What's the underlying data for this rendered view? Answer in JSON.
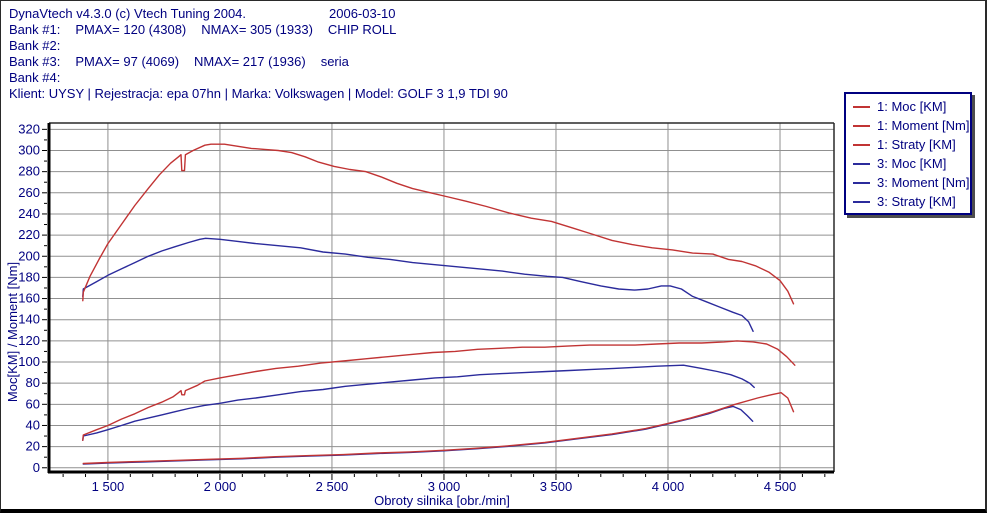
{
  "header": {
    "app_title": "DynaVtech v4.3.0 (c) Vtech Tuning 2004.",
    "date": "2006-03-10",
    "banks": [
      {
        "label": "Bank #1:",
        "pmax": "PMAX= 120 (4308)",
        "nmax": "NMAX= 305 (1933)",
        "note": "CHIP ROLL"
      },
      {
        "label": "Bank #2:",
        "pmax": "",
        "nmax": "",
        "note": ""
      },
      {
        "label": "Bank #3:",
        "pmax": "PMAX= 97 (4069)",
        "nmax": "NMAX= 217 (1936)",
        "note": "seria"
      },
      {
        "label": "Bank #4:",
        "pmax": "",
        "nmax": "",
        "note": ""
      }
    ],
    "client_line": "Klient: UYSY | Rejestracja: epa 07hn | Marka: Volkswagen | Model: GOLF 3 1,9 TDI 90"
  },
  "legend": {
    "items": [
      {
        "label": "1: Moc [KM]"
      },
      {
        "label": "1: Moment [Nm]"
      },
      {
        "label": "1: Straty [KM]"
      },
      {
        "label": "3: Moc [KM]"
      },
      {
        "label": "3: Moment [Nm]"
      },
      {
        "label": "3: Straty [KM]"
      }
    ]
  },
  "colors": {
    "text_navy": "#000080",
    "curve_red": "#c13434",
    "curve_blue": "#2b2b9c",
    "grid": "#909090",
    "plot_border": "#2a2a2a"
  },
  "chart_data": {
    "type": "line",
    "title": "",
    "xlabel": "Obroty silnika [obr./min]",
    "ylabel": "Moc[KM] / Moment [Nm]",
    "xlim": [
      1237,
      4741
    ],
    "ylim": [
      -4,
      326
    ],
    "grid": true,
    "legend_position": "top-right-outside",
    "x_ticks_major": [
      1500,
      2000,
      2500,
      3000,
      3500,
      4000,
      4500
    ],
    "x_tick_labels": [
      "1 500",
      "2 000",
      "2 500",
      "3 000",
      "3 500",
      "4 000",
      "4 500"
    ],
    "x_minor_step": 100,
    "y_ticks_major": [
      0,
      20,
      40,
      60,
      80,
      100,
      120,
      140,
      160,
      180,
      200,
      220,
      240,
      260,
      280,
      300,
      320
    ],
    "y_tick_labels": [
      "0",
      "20",
      "40",
      "60",
      "80",
      "100",
      "120",
      "140",
      "160",
      "180",
      "200",
      "220",
      "240",
      "260",
      "280",
      "300",
      "320"
    ],
    "y_minor_step": 10,
    "series": [
      {
        "id": "moment1",
        "name": "1: Moment [Nm]",
        "bank": 1,
        "color": "#c13434",
        "peak_note": "NMAX= 305 (1933)",
        "points": [
          [
            1388,
            158
          ],
          [
            1390,
            166
          ],
          [
            1420,
            181
          ],
          [
            1460,
            197
          ],
          [
            1500,
            212
          ],
          [
            1560,
            230
          ],
          [
            1620,
            248
          ],
          [
            1680,
            264
          ],
          [
            1730,
            277
          ],
          [
            1780,
            288
          ],
          [
            1815,
            294
          ],
          [
            1826,
            296
          ],
          [
            1830,
            281
          ],
          [
            1842,
            281
          ],
          [
            1846,
            296
          ],
          [
            1880,
            300
          ],
          [
            1933,
            305
          ],
          [
            1960,
            306
          ],
          [
            2020,
            306
          ],
          [
            2080,
            304
          ],
          [
            2140,
            302
          ],
          [
            2200,
            301
          ],
          [
            2260,
            300
          ],
          [
            2320,
            298
          ],
          [
            2380,
            294
          ],
          [
            2440,
            289
          ],
          [
            2510,
            285
          ],
          [
            2580,
            282
          ],
          [
            2650,
            280
          ],
          [
            2720,
            275
          ],
          [
            2790,
            269
          ],
          [
            2860,
            264
          ],
          [
            2940,
            260
          ],
          [
            3020,
            256
          ],
          [
            3100,
            252
          ],
          [
            3190,
            247
          ],
          [
            3290,
            241
          ],
          [
            3390,
            236
          ],
          [
            3480,
            233
          ],
          [
            3570,
            227
          ],
          [
            3660,
            221
          ],
          [
            3750,
            215
          ],
          [
            3840,
            211
          ],
          [
            3930,
            208
          ],
          [
            4020,
            206
          ],
          [
            4110,
            203
          ],
          [
            4200,
            202
          ],
          [
            4270,
            197
          ],
          [
            4330,
            195
          ],
          [
            4390,
            191
          ],
          [
            4450,
            185
          ],
          [
            4500,
            177
          ],
          [
            4535,
            167
          ],
          [
            4560,
            155
          ]
        ]
      },
      {
        "id": "moment3",
        "name": "3: Moment [Nm]",
        "bank": 3,
        "color": "#2b2b9c",
        "peak_note": "NMAX= 217 (1936)",
        "points": [
          [
            1388,
            162
          ],
          [
            1390,
            169
          ],
          [
            1450,
            176
          ],
          [
            1500,
            182
          ],
          [
            1560,
            188
          ],
          [
            1620,
            194
          ],
          [
            1680,
            200
          ],
          [
            1740,
            205
          ],
          [
            1800,
            209
          ],
          [
            1860,
            213
          ],
          [
            1910,
            216
          ],
          [
            1936,
            217
          ],
          [
            2000,
            216
          ],
          [
            2080,
            214
          ],
          [
            2160,
            212
          ],
          [
            2260,
            210
          ],
          [
            2360,
            208
          ],
          [
            2460,
            204
          ],
          [
            2560,
            202
          ],
          [
            2660,
            199
          ],
          [
            2760,
            197
          ],
          [
            2860,
            194
          ],
          [
            2960,
            192
          ],
          [
            3060,
            190
          ],
          [
            3160,
            188
          ],
          [
            3260,
            186
          ],
          [
            3360,
            183
          ],
          [
            3460,
            181
          ],
          [
            3530,
            180
          ],
          [
            3610,
            176
          ],
          [
            3700,
            172
          ],
          [
            3780,
            169
          ],
          [
            3850,
            168
          ],
          [
            3910,
            169
          ],
          [
            3970,
            172
          ],
          [
            4010,
            172
          ],
          [
            4060,
            169
          ],
          [
            4110,
            162
          ],
          [
            4170,
            157
          ],
          [
            4230,
            152
          ],
          [
            4290,
            147
          ],
          [
            4330,
            144
          ],
          [
            4360,
            138
          ],
          [
            4380,
            129
          ]
        ]
      },
      {
        "id": "moc1",
        "name": "1: Moc [KM]",
        "bank": 1,
        "color": "#c13434",
        "peak_note": "PMAX= 120 (4308)",
        "points": [
          [
            1388,
            26
          ],
          [
            1390,
            31
          ],
          [
            1450,
            36
          ],
          [
            1500,
            40
          ],
          [
            1560,
            46
          ],
          [
            1620,
            51
          ],
          [
            1680,
            57
          ],
          [
            1740,
            62
          ],
          [
            1790,
            67
          ],
          [
            1815,
            71
          ],
          [
            1826,
            73
          ],
          [
            1830,
            69
          ],
          [
            1842,
            69
          ],
          [
            1846,
            73
          ],
          [
            1900,
            78
          ],
          [
            1933,
            82
          ],
          [
            2000,
            85
          ],
          [
            2080,
            88
          ],
          [
            2160,
            91
          ],
          [
            2250,
            94
          ],
          [
            2350,
            96
          ],
          [
            2450,
            99
          ],
          [
            2550,
            101
          ],
          [
            2650,
            103
          ],
          [
            2750,
            105
          ],
          [
            2850,
            107
          ],
          [
            2950,
            109
          ],
          [
            3050,
            110
          ],
          [
            3150,
            112
          ],
          [
            3250,
            113
          ],
          [
            3350,
            114
          ],
          [
            3450,
            114
          ],
          [
            3550,
            115
          ],
          [
            3650,
            116
          ],
          [
            3750,
            116
          ],
          [
            3850,
            116
          ],
          [
            3950,
            117
          ],
          [
            4050,
            118
          ],
          [
            4150,
            118
          ],
          [
            4250,
            119
          ],
          [
            4308,
            120
          ],
          [
            4380,
            119
          ],
          [
            4440,
            117
          ],
          [
            4490,
            112
          ],
          [
            4530,
            105
          ],
          [
            4566,
            97
          ]
        ]
      },
      {
        "id": "moc3",
        "name": "3: Moc [KM]",
        "bank": 3,
        "color": "#2b2b9c",
        "peak_note": "PMAX= 97 (4069)",
        "points": [
          [
            1388,
            26
          ],
          [
            1390,
            30
          ],
          [
            1450,
            33
          ],
          [
            1500,
            36
          ],
          [
            1560,
            40
          ],
          [
            1620,
            44
          ],
          [
            1680,
            47
          ],
          [
            1740,
            50
          ],
          [
            1800,
            53
          ],
          [
            1860,
            56
          ],
          [
            1930,
            59
          ],
          [
            2000,
            61
          ],
          [
            2080,
            64
          ],
          [
            2160,
            66
          ],
          [
            2260,
            69
          ],
          [
            2360,
            72
          ],
          [
            2460,
            74
          ],
          [
            2560,
            77
          ],
          [
            2660,
            79
          ],
          [
            2760,
            81
          ],
          [
            2860,
            83
          ],
          [
            2960,
            85
          ],
          [
            3060,
            86
          ],
          [
            3160,
            88
          ],
          [
            3260,
            89
          ],
          [
            3360,
            90
          ],
          [
            3460,
            91
          ],
          [
            3560,
            92
          ],
          [
            3660,
            93
          ],
          [
            3760,
            94
          ],
          [
            3860,
            95
          ],
          [
            3950,
            96
          ],
          [
            4069,
            97
          ],
          [
            4150,
            94
          ],
          [
            4220,
            91
          ],
          [
            4280,
            88
          ],
          [
            4330,
            84
          ],
          [
            4365,
            80
          ],
          [
            4385,
            76
          ]
        ]
      },
      {
        "id": "straty1",
        "name": "1: Straty [KM]",
        "bank": 1,
        "color": "#c13434",
        "points": [
          [
            1390,
            4
          ],
          [
            1500,
            5
          ],
          [
            1650,
            6
          ],
          [
            1800,
            7
          ],
          [
            1950,
            8
          ],
          [
            2100,
            9
          ],
          [
            2250,
            10.5
          ],
          [
            2400,
            11.5
          ],
          [
            2550,
            12.5
          ],
          [
            2700,
            14
          ],
          [
            2850,
            15
          ],
          [
            3000,
            16.5
          ],
          [
            3150,
            18.5
          ],
          [
            3300,
            21
          ],
          [
            3450,
            24
          ],
          [
            3600,
            28
          ],
          [
            3750,
            32
          ],
          [
            3900,
            37
          ],
          [
            4000,
            42
          ],
          [
            4100,
            47
          ],
          [
            4200,
            53
          ],
          [
            4300,
            60
          ],
          [
            4400,
            66
          ],
          [
            4460,
            69
          ],
          [
            4505,
            71
          ],
          [
            4535,
            66
          ],
          [
            4560,
            53
          ]
        ]
      },
      {
        "id": "straty3",
        "name": "3: Straty [KM]",
        "bank": 3,
        "color": "#2b2b9c",
        "points": [
          [
            1390,
            3.5
          ],
          [
            1500,
            4.5
          ],
          [
            1650,
            5.5
          ],
          [
            1800,
            6.5
          ],
          [
            1950,
            7.5
          ],
          [
            2100,
            8.5
          ],
          [
            2250,
            10
          ],
          [
            2400,
            11
          ],
          [
            2550,
            12
          ],
          [
            2700,
            13.5
          ],
          [
            2850,
            14.5
          ],
          [
            3000,
            16
          ],
          [
            3150,
            18
          ],
          [
            3300,
            20.5
          ],
          [
            3450,
            23.5
          ],
          [
            3600,
            27.5
          ],
          [
            3750,
            31.5
          ],
          [
            3900,
            36.5
          ],
          [
            4000,
            41.5
          ],
          [
            4100,
            46.5
          ],
          [
            4180,
            51
          ],
          [
            4250,
            56
          ],
          [
            4290,
            58
          ],
          [
            4325,
            55
          ],
          [
            4355,
            49
          ],
          [
            4378,
            44
          ]
        ]
      }
    ]
  }
}
